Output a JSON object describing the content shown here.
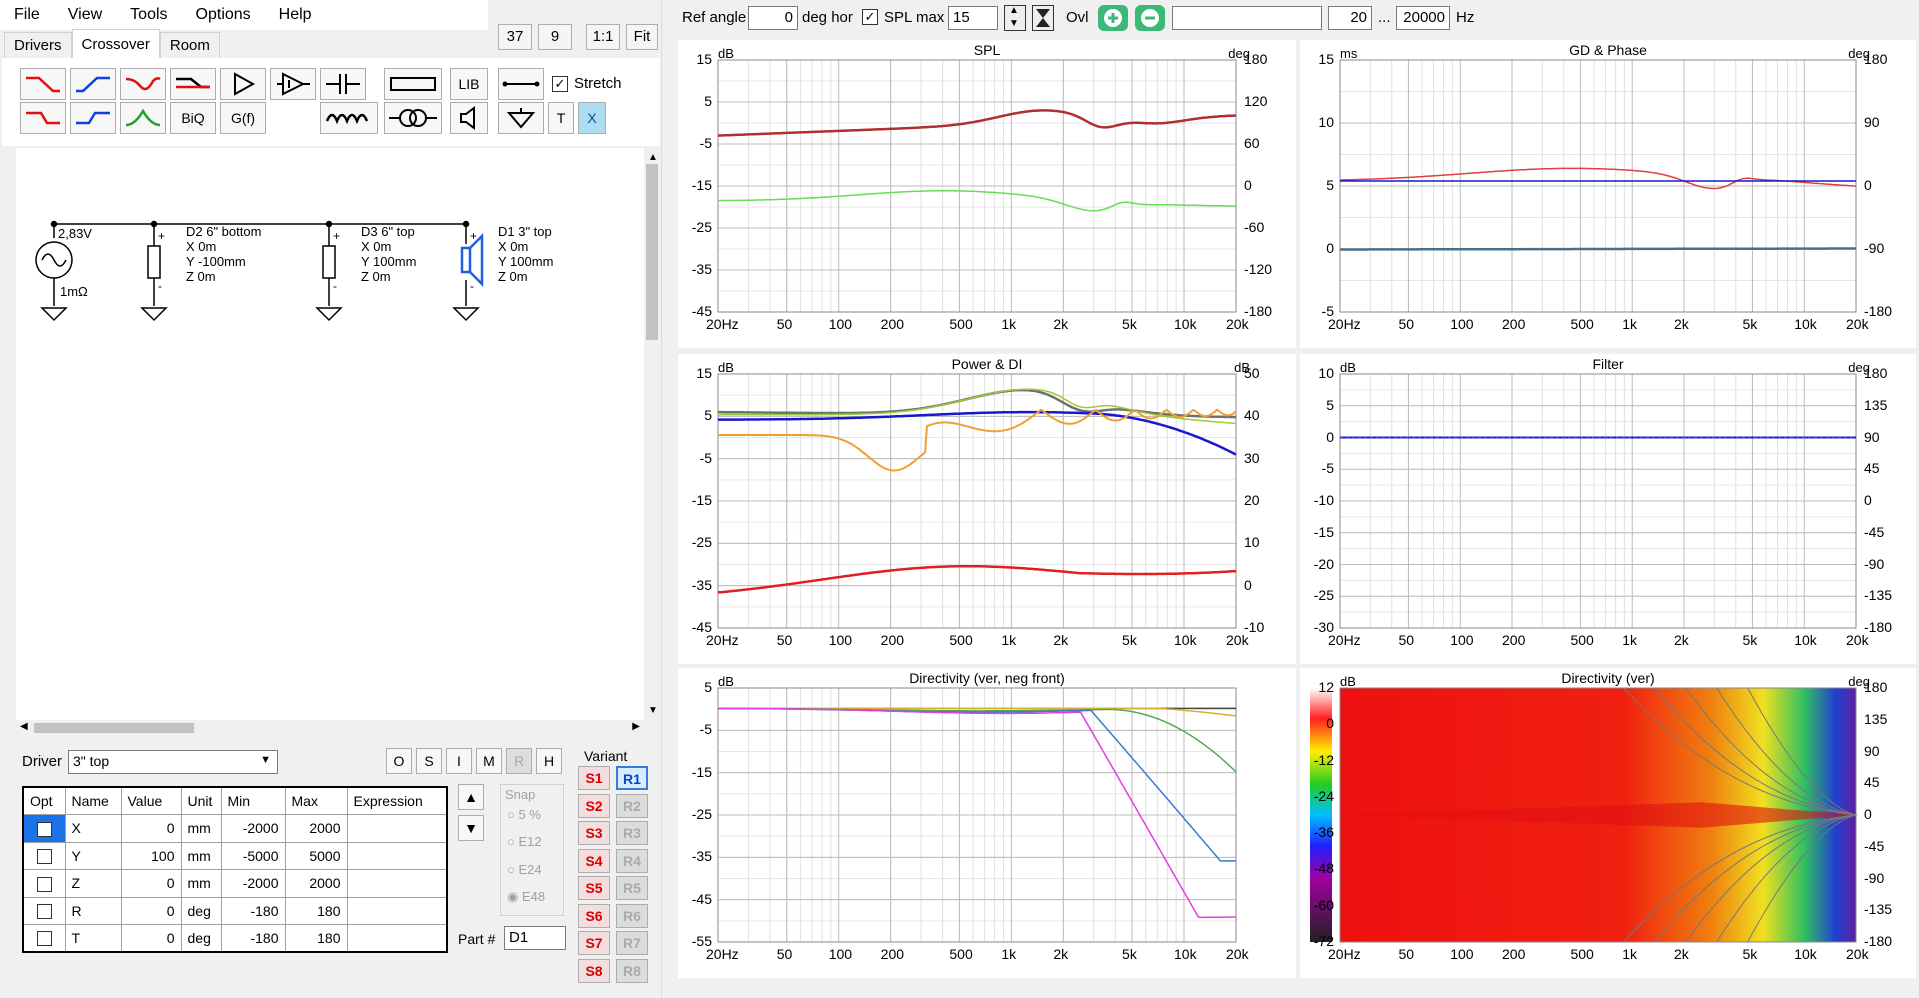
{
  "menu": [
    "File",
    "View",
    "Tools",
    "Options",
    "Help"
  ],
  "top_left_buttons": {
    "b1": "37",
    "b2": "9",
    "b3": "1:1",
    "b4": "Fit"
  },
  "tabs": [
    "Drivers",
    "Crossover",
    "Room"
  ],
  "toolbar": {
    "lib": "LIB",
    "biq": "BiQ",
    "gf": "G(f)",
    "t": "T",
    "x": "X",
    "stretch": "Stretch"
  },
  "schematic": {
    "source": {
      "voltage": "2,83V",
      "impedance": "1mΩ"
    },
    "drivers": [
      {
        "name": "D2 6\" bottom",
        "x": "X 0m",
        "y": "Y -100mm",
        "z": "Z 0m"
      },
      {
        "name": "D3 6\" top",
        "x": "X 0m",
        "y": "Y 100mm",
        "z": "Z 0m"
      },
      {
        "name": "D1 3\" top",
        "x": "X 0m",
        "y": "Y 100mm",
        "z": "Z 0m"
      }
    ]
  },
  "driver_select": {
    "label": "Driver",
    "value": "3\" top"
  },
  "ohm_buttons": [
    "O",
    "S",
    "I",
    "M",
    "R",
    "H"
  ],
  "variant": {
    "label": "Variant",
    "s": [
      "S1",
      "S2",
      "S3",
      "S4",
      "S5",
      "S6",
      "S7",
      "S8"
    ],
    "r": [
      "R1",
      "R2",
      "R3",
      "R4",
      "R5",
      "R6",
      "R7",
      "R8"
    ],
    "active": "R1"
  },
  "table": {
    "headers": [
      "Opt",
      "Name",
      "Value",
      "Unit",
      "Min",
      "Max",
      "Expression"
    ],
    "rows": [
      [
        "",
        "X",
        "0",
        "mm",
        "-2000",
        "2000",
        ""
      ],
      [
        "",
        "Y",
        "100",
        "mm",
        "-5000",
        "5000",
        ""
      ],
      [
        "",
        "Z",
        "0",
        "mm",
        "-2000",
        "2000",
        ""
      ],
      [
        "",
        "R",
        "0",
        "deg",
        "-180",
        "180",
        ""
      ],
      [
        "",
        "T",
        "0",
        "deg",
        "-180",
        "180",
        ""
      ]
    ]
  },
  "snap": {
    "label": "Snap",
    "options": [
      "5 %",
      "E12",
      "E24",
      "E48"
    ],
    "selected": "E48"
  },
  "part": {
    "label": "Part #",
    "value": "D1"
  },
  "topbar": {
    "ref_label": "Ref angle",
    "ref_value": "0",
    "ref_unit": "deg hor",
    "splmax_label": "SPL max",
    "splmax_value": "15",
    "ovl": "Ovl",
    "fmin": "20",
    "dots": "...",
    "fmax": "20000",
    "hz": "Hz"
  },
  "xticks": [
    "20Hz",
    "50",
    "100",
    "200",
    "500",
    "1k",
    "2k",
    "5k",
    "10k",
    "20k"
  ],
  "charts": [
    {
      "title": "SPL",
      "unitL": "dB",
      "unitR": "deg",
      "left": [
        "15",
        "5",
        "-5",
        "-15",
        "-25",
        "-35",
        "-45"
      ],
      "right": [
        "180",
        "120",
        "60",
        "0",
        "-60",
        "-120",
        "-180"
      ]
    },
    {
      "title": "GD & Phase",
      "unitL": "ms",
      "unitR": "deg",
      "left": [
        "15",
        "10",
        "5",
        "0",
        "-5"
      ],
      "right": [
        "180",
        "90",
        "0",
        "-90",
        "-180"
      ]
    },
    {
      "title": "Power & DI",
      "unitL": "dB",
      "unitR": "dB",
      "left": [
        "15",
        "5",
        "-5",
        "-15",
        "-25",
        "-35",
        "-45"
      ],
      "right": [
        "50",
        "40",
        "30",
        "20",
        "10",
        "0",
        "-10"
      ]
    },
    {
      "title": "Filter",
      "unitL": "dB",
      "unitR": "deg",
      "left": [
        "10",
        "5",
        "0",
        "-5",
        "-10",
        "-15",
        "-20",
        "-25",
        "-30"
      ],
      "right": [
        "180",
        "135",
        "90",
        "45",
        "0",
        "-45",
        "-90",
        "-135",
        "-180"
      ]
    },
    {
      "title": "Directivity (ver, neg front)",
      "unitL": "dB",
      "unitR": "",
      "left": [
        "5",
        "-5",
        "-15",
        "-25",
        "-35",
        "-45",
        "-55"
      ],
      "right": []
    },
    {
      "title": "Directivity (ver)",
      "unitL": "dB",
      "unitR": "deg",
      "left": [
        "12",
        "0",
        "-12",
        "-24",
        "-36",
        "-48",
        "-60",
        "-72"
      ],
      "right": [
        "180",
        "135",
        "90",
        "45",
        "0",
        "-45",
        "-90",
        "-135",
        "-180"
      ]
    }
  ],
  "colors": {
    "spl": "#b03030",
    "phase": "#66dd55",
    "gd": "#e04040",
    "blue": "#1818d0",
    "orange": "#f0a030",
    "gray": "#707070",
    "green2": "#99cc33",
    "red": "#e02020"
  }
}
